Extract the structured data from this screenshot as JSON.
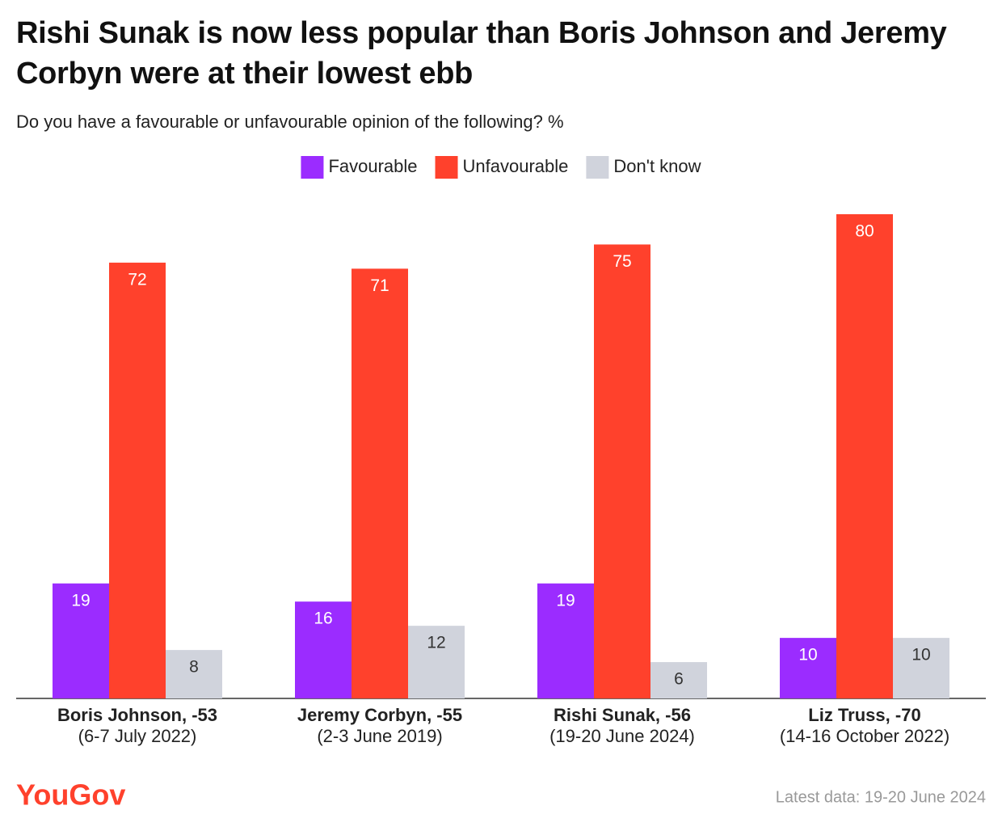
{
  "chart_data": {
    "type": "bar",
    "title": "Rishi Sunak is now less popular than Boris Johnson and Jeremy Corbyn were at their lowest ebb",
    "subtitle": "Do you have a favourable or unfavourable opinion of the following? %",
    "categories": [
      "Boris Johnson, -53",
      "Jeremy Corbyn, -55",
      "Rishi Sunak, -56",
      "Liz Truss, -70"
    ],
    "category_dates": [
      "(6-7 July 2022)",
      "(2-3 June 2019)",
      "(19-20 June 2024)",
      "(14-16 October 2022)"
    ],
    "series": [
      {
        "name": "Favourable",
        "color": "#9b2cff",
        "values": [
          19,
          16,
          19,
          10
        ]
      },
      {
        "name": "Unfavourable",
        "color": "#ff412c",
        "values": [
          72,
          71,
          75,
          80
        ]
      },
      {
        "name": "Don't know",
        "color": "#d0d3dc",
        "values": [
          8,
          12,
          6,
          10
        ]
      }
    ],
    "ylim": [
      0,
      80
    ],
    "source_logo": "YouGov",
    "footnote": "Latest data: 19-20 June 2024"
  }
}
